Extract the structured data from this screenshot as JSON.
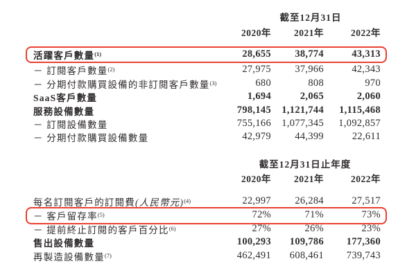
{
  "page": {
    "background": "#ffffff",
    "text_color": "#2f2b2c",
    "highlight_color": "#e8402f"
  },
  "table1": {
    "header": "截至12月31日",
    "years": [
      "2020年",
      "2021年",
      "2022年"
    ],
    "rows": [
      {
        "label": "活躍客戶數量",
        "sup": "(1)",
        "values": [
          "28,655",
          "38,774",
          "43,313"
        ],
        "bold": true,
        "highlighted": true
      },
      {
        "label": "－ 訂閱客戶數量",
        "sup": "(2)",
        "values": [
          "27,975",
          "37,966",
          "42,343"
        ],
        "bold": false,
        "highlighted": false
      },
      {
        "label": "－ 分期付款購買設備的非訂閱客戶數量",
        "sup": "(3)",
        "values": [
          "680",
          "808",
          "970"
        ],
        "bold": false,
        "highlighted": false
      },
      {
        "label": "SaaS客戶數量",
        "sup": "",
        "values": [
          "1,694",
          "2,065",
          "2,060"
        ],
        "bold": true,
        "highlighted": false
      },
      {
        "label": "服務設備數量",
        "sup": "",
        "values": [
          "798,145",
          "1,121,744",
          "1,115,468"
        ],
        "bold": true,
        "highlighted": false
      },
      {
        "label": "－ 訂閱設備數量",
        "sup": "",
        "values": [
          "755,166",
          "1,077,345",
          "1,092,857"
        ],
        "bold": false,
        "highlighted": false
      },
      {
        "label": "－ 分期付款購買設備數量",
        "sup": "",
        "values": [
          "42,979",
          "44,399",
          "22,611"
        ],
        "bold": false,
        "highlighted": false
      }
    ]
  },
  "table2": {
    "header": "截至12月31日止年度",
    "years": [
      "2020年",
      "2021年",
      "2022年"
    ],
    "rows": [
      {
        "label": "每名訂閱客戶的訂閱費",
        "label_italic": "(人民幣元)",
        "sup": "(4)",
        "values": [
          "22,997",
          "26,284",
          "27,517"
        ],
        "bold": false,
        "highlighted": false
      },
      {
        "label": "－ 客戶留存率",
        "sup": "(5)",
        "values": [
          "72%",
          "71%",
          "73%"
        ],
        "bold": false,
        "highlighted": true
      },
      {
        "label": "－ 提前終止訂閱的客戶百分比",
        "sup": "(6)",
        "values": [
          "27%",
          "26%",
          "23%"
        ],
        "bold": false,
        "highlighted": false
      },
      {
        "label": "售出設備數量",
        "sup": "",
        "values": [
          "100,293",
          "109,786",
          "177,360"
        ],
        "bold": true,
        "highlighted": false
      },
      {
        "label": "再製造設備數量",
        "sup": "(7)",
        "values": [
          "462,491",
          "608,461",
          "739,743"
        ],
        "bold": false,
        "highlighted": false
      }
    ]
  }
}
